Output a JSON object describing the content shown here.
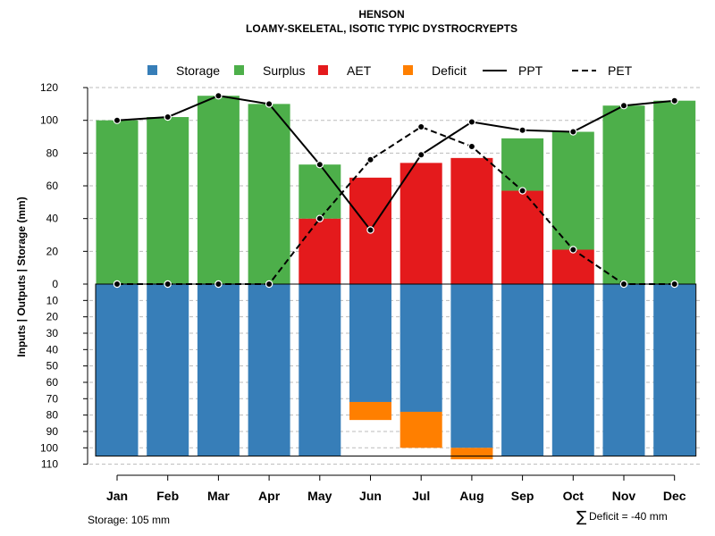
{
  "chart_data": {
    "type": "bar",
    "title": "HENSON",
    "subtitle": "LOAMY-SKELETAL, ISOTIC TYPIC DYSTROCRYEPTS",
    "ylabel": "Inputs | Outputs | Storage    (mm)",
    "categories": [
      "Jan",
      "Feb",
      "Mar",
      "Apr",
      "May",
      "Jun",
      "Jul",
      "Aug",
      "Sep",
      "Oct",
      "Nov",
      "Dec"
    ],
    "ylim_top": [
      0,
      120
    ],
    "ylim_bottom": [
      0,
      110
    ],
    "yticks_top": [
      "0",
      "20",
      "40",
      "60",
      "80",
      "100",
      "120"
    ],
    "yticks_bottom": [
      "10",
      "20",
      "30",
      "40",
      "50",
      "60",
      "70",
      "80",
      "90",
      "100",
      "110"
    ],
    "legend": [
      {
        "key": "storage",
        "label": "Storage",
        "kind": "box"
      },
      {
        "key": "surplus",
        "label": "Surplus",
        "kind": "box"
      },
      {
        "key": "aet",
        "label": "AET",
        "kind": "box"
      },
      {
        "key": "deficit",
        "label": "Deficit",
        "kind": "box"
      },
      {
        "key": "ppt",
        "label": "PPT",
        "kind": "solid"
      },
      {
        "key": "pet",
        "label": "PET",
        "kind": "dashed"
      }
    ],
    "colors": {
      "storage": "#377eb8",
      "surplus": "#4daf4a",
      "aet": "#e41a1c",
      "deficit": "#ff7f00",
      "grid": "#bbbbbb"
    },
    "series": [
      {
        "name": "AET",
        "key": "aet",
        "values": [
          0,
          0,
          0,
          0,
          40,
          65,
          74,
          77,
          57,
          21,
          0,
          0
        ]
      },
      {
        "name": "Surplus",
        "key": "surplus",
        "values": [
          100,
          102,
          115,
          110,
          33,
          0,
          0,
          0,
          32,
          72,
          109,
          112
        ]
      },
      {
        "name": "Storage",
        "key": "storage",
        "values": [
          105,
          105,
          105,
          105,
          105,
          72,
          78,
          100,
          105,
          105,
          105,
          105
        ]
      },
      {
        "name": "Deficit",
        "key": "deficit",
        "values": [
          0,
          0,
          0,
          0,
          0,
          11,
          22,
          7,
          0,
          0,
          0,
          0
        ]
      },
      {
        "name": "PPT",
        "key": "ppt",
        "values": [
          100,
          102,
          115,
          110,
          73,
          33,
          79,
          99,
          94,
          93,
          109,
          112
        ]
      },
      {
        "name": "PET",
        "key": "pet",
        "values": [
          0,
          0,
          0,
          0,
          40,
          76,
          96,
          84,
          57,
          21,
          0,
          0
        ]
      }
    ],
    "storage_capacity": 105
  },
  "notes": {
    "storage": "Storage: 105 mm",
    "deficit_symbol": "∑",
    "deficit_sum": "Deficit = -40 mm"
  }
}
